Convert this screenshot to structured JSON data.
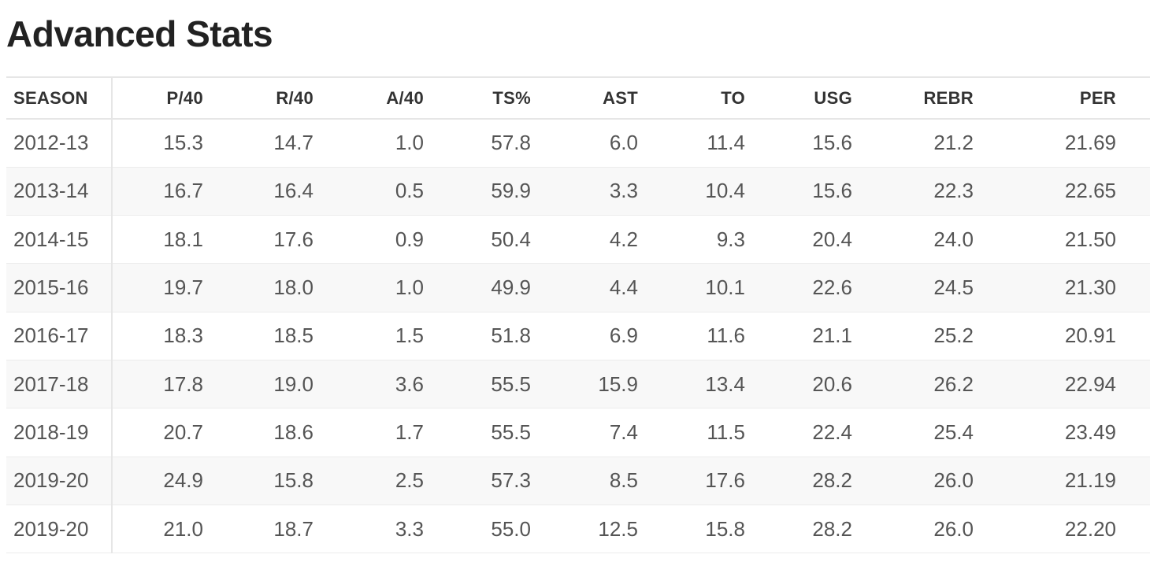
{
  "title": "Advanced Stats",
  "table": {
    "columns": [
      "SEASON",
      "P/40",
      "R/40",
      "A/40",
      "TS%",
      "AST",
      "TO",
      "USG",
      "REBR",
      "PER"
    ],
    "rows": [
      [
        "2012-13",
        "15.3",
        "14.7",
        "1.0",
        "57.8",
        "6.0",
        "11.4",
        "15.6",
        "21.2",
        "21.69"
      ],
      [
        "2013-14",
        "16.7",
        "16.4",
        "0.5",
        "59.9",
        "3.3",
        "10.4",
        "15.6",
        "22.3",
        "22.65"
      ],
      [
        "2014-15",
        "18.1",
        "17.6",
        "0.9",
        "50.4",
        "4.2",
        "9.3",
        "20.4",
        "24.0",
        "21.50"
      ],
      [
        "2015-16",
        "19.7",
        "18.0",
        "1.0",
        "49.9",
        "4.4",
        "10.1",
        "22.6",
        "24.5",
        "21.30"
      ],
      [
        "2016-17",
        "18.3",
        "18.5",
        "1.5",
        "51.8",
        "6.9",
        "11.6",
        "21.1",
        "25.2",
        "20.91"
      ],
      [
        "2017-18",
        "17.8",
        "19.0",
        "3.6",
        "55.5",
        "15.9",
        "13.4",
        "20.6",
        "26.2",
        "22.94"
      ],
      [
        "2018-19",
        "20.7",
        "18.6",
        "1.7",
        "55.5",
        "7.4",
        "11.5",
        "22.4",
        "25.4",
        "23.49"
      ],
      [
        "2019-20",
        "24.9",
        "15.8",
        "2.5",
        "57.3",
        "8.5",
        "17.6",
        "28.2",
        "26.0",
        "21.19"
      ],
      [
        "2019-20",
        "21.0",
        "18.7",
        "3.3",
        "55.0",
        "12.5",
        "15.8",
        "28.2",
        "26.0",
        "22.20"
      ]
    ]
  }
}
